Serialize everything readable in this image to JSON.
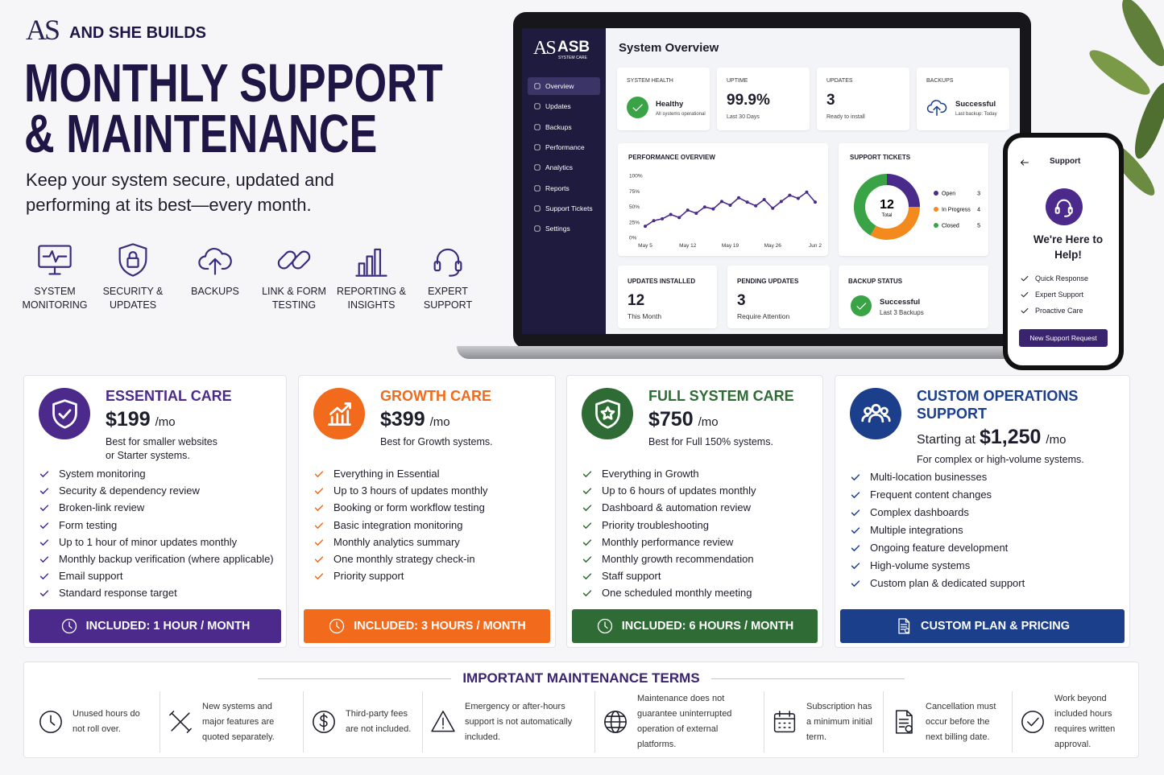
{
  "brand": {
    "logo": "AS",
    "name": "AND SHE BUILDS"
  },
  "header": {
    "title": [
      "MONTHLY SUPPORT",
      "& MAINTENANCE"
    ],
    "subtitle": "Keep your system secure, updated and performing at its best—every month."
  },
  "features": [
    "SYSTEM MONITORING",
    "SECURITY & UPDATES",
    "BACKUPS",
    "LINK & FORM TESTING",
    "REPORTING & INSIGHTS",
    "EXPERT SUPPORT"
  ],
  "dashboard": {
    "logo": "AS",
    "logo_name": "ASB",
    "logo_sub": "SYSTEM CARE",
    "nav": [
      "Overview",
      "Updates",
      "Backups",
      "Performance",
      "Analytics",
      "Reports",
      "Support Tickets",
      "Settings"
    ],
    "title": "System Overview",
    "stats": [
      {
        "label": "SYSTEM HEALTH",
        "value": "Healthy",
        "note": "All systems operational"
      },
      {
        "label": "UPTIME",
        "value": "99.9%",
        "note": "Last 30 Days"
      },
      {
        "label": "UPDATES",
        "value": 3,
        "note": "Ready to install"
      },
      {
        "label": "BACKUPS",
        "value": "Successful",
        "note": "Last backup: Today"
      }
    ],
    "performance": {
      "type": "line",
      "title": "PERFORMANCE OVERVIEW",
      "categories": [
        "May 5",
        null,
        null,
        null,
        null,
        "May 12",
        null,
        null,
        null,
        null,
        "May 19",
        null,
        null,
        null,
        null,
        "May 26",
        null,
        null,
        null,
        null,
        "Jun 2"
      ],
      "values": [
        18,
        27,
        30,
        37,
        32,
        44,
        39,
        49,
        46,
        58,
        52,
        64,
        57,
        51,
        61,
        47,
        58,
        68,
        63,
        73,
        57
      ],
      "color": "#4a2a8a",
      "ylim": [
        0,
        100
      ],
      "yticks": [
        {
          "value": 0,
          "label": "0%"
        },
        {
          "value": 25,
          "label": "25%"
        },
        {
          "value": 50,
          "label": "50%"
        },
        {
          "value": 75,
          "label": "75%"
        },
        {
          "value": 100,
          "label": "100%"
        }
      ]
    },
    "tickets": {
      "type": "donut",
      "title": "SUPPORT TICKETS",
      "total": 12,
      "total_label": "Total",
      "categories": [
        "Open",
        "In Progress",
        "Closed"
      ],
      "values": [
        3,
        4,
        5
      ],
      "colors": [
        "#4a2a8a",
        "#f28a1e",
        "#3aa346"
      ]
    },
    "bottom": [
      {
        "label": "UPDATES INSTALLED",
        "value": 12,
        "note": "This Month"
      },
      {
        "label": "PENDING UPDATES",
        "value": 3,
        "note": "Require Attention"
      },
      {
        "label": "BACKUP STATUS",
        "value": "Successful",
        "note": "Last 3 Backups"
      }
    ]
  },
  "phone": {
    "title": "Support",
    "heading": "We're Here to Help!",
    "items": [
      "Quick Response",
      "Expert Support",
      "Proactive Care"
    ],
    "button": "New Support Request"
  },
  "plans": [
    {
      "name": "ESSENTIAL CARE",
      "price": "$199",
      "unit": "/mo",
      "description": "Best for smaller websites or Starter systems.",
      "color": "#4b2a8c",
      "features": [
        "System monitoring",
        "Security & dependency review",
        "Broken-link review",
        "Form testing",
        "Up to 1 hour of minor updates monthly",
        "Monthly backup verification (where applicable)",
        "Email support",
        "Standard response target"
      ],
      "included": "INCLUDED: 1 HOUR / MONTH"
    },
    {
      "name": "GROWTH CARE",
      "price": "$399",
      "unit": "/mo",
      "description": "Best for Growth systems.",
      "color": "#f26a1b",
      "features": [
        "Everything in Essential",
        "Up to 3 hours of updates monthly",
        "Booking or form workflow testing",
        "Basic integration monitoring",
        "Monthly analytics summary",
        "One monthly strategy check-in",
        "Priority support"
      ],
      "included": "INCLUDED: 3 HOURS / MONTH"
    },
    {
      "name": "FULL SYSTEM CARE",
      "price": "$750",
      "unit": "/mo",
      "description": "Best for Full 150% systems.",
      "color": "#2f6b34",
      "features": [
        "Everything in Growth",
        "Up to 6 hours of updates monthly",
        "Dashboard & automation review",
        "Priority troubleshooting",
        "Monthly performance review",
        "Monthly growth recommendation",
        "Staff support",
        "One scheduled monthly meeting"
      ],
      "included": "INCLUDED: 6 HOURS / MONTH"
    },
    {
      "name": "CUSTOM OPERATIONS SUPPORT",
      "price_prefix": "Starting at",
      "price": "$1,250",
      "unit": "/mo",
      "description": "For complex or high-volume systems.",
      "color": "#1c3f8c",
      "features": [
        "Multi-location businesses",
        "Frequent content changes",
        "Complex dashboards",
        "Multiple integrations",
        "Ongoing feature development",
        "High-volume systems",
        "Custom plan & dedicated support"
      ],
      "included": "CUSTOM PLAN & PRICING"
    }
  ],
  "terms": {
    "title": "IMPORTANT MAINTENANCE TERMS",
    "items": [
      "Unused hours do not roll over.",
      "New systems and major features are quoted separately.",
      "Third-party fees are not included.",
      "Emergency or after-hours support is not automatically included.",
      "Maintenance does not guarantee uninterrupted operation of external platforms.",
      "Subscription has a minimum initial term.",
      "Cancellation must occur before the next billing date.",
      "Work beyond included hours requires written approval."
    ]
  }
}
